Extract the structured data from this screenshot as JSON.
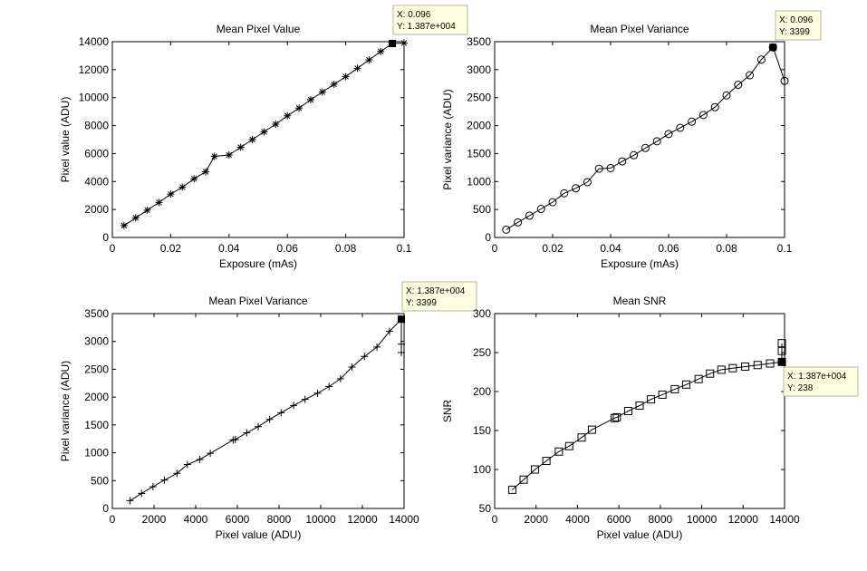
{
  "chart_data": [
    {
      "type": "line",
      "title": "Mean Pixel Value",
      "xlabel": "Exposure (mAs)",
      "ylabel": "Pixel value (ADU)",
      "xlim": [
        0,
        0.1
      ],
      "ylim": [
        0,
        14000
      ],
      "xticks": [
        "0",
        "0.02",
        "0.04",
        "0.06",
        "0.08",
        "0.1"
      ],
      "yticks": [
        "0",
        "2000",
        "4000",
        "6000",
        "8000",
        "10000",
        "12000",
        "14000"
      ],
      "marker": "asterisk",
      "series": [
        {
          "x": [
            0.004,
            0.008,
            0.012,
            0.016,
            0.02,
            0.024,
            0.028,
            0.032,
            0.035,
            0.04,
            0.044,
            0.048,
            0.052,
            0.056,
            0.06,
            0.064,
            0.068,
            0.072,
            0.076,
            0.08,
            0.084,
            0.088,
            0.092,
            0.096,
            0.1
          ],
          "y": [
            850,
            1400,
            1950,
            2500,
            3100,
            3600,
            4200,
            4700,
            5800,
            5900,
            6450,
            7000,
            7550,
            8100,
            8700,
            9250,
            9850,
            10400,
            10950,
            11500,
            12100,
            12700,
            13300,
            13870,
            13900
          ]
        }
      ],
      "datatip": {
        "x": 0.096,
        "y": 13870,
        "lines": [
          "X: 0.096",
          "Y: 1.387e+004"
        ]
      }
    },
    {
      "type": "line",
      "title": "Mean Pixel Variance",
      "xlabel": "Exposure (mAs)",
      "ylabel": "Pixel variance (ADU)",
      "xlim": [
        0,
        0.1
      ],
      "ylim": [
        0,
        3500
      ],
      "xticks": [
        "0",
        "0.02",
        "0.04",
        "0.06",
        "0.08",
        "0.1"
      ],
      "yticks": [
        "0",
        "500",
        "1000",
        "1500",
        "2000",
        "2500",
        "3000",
        "3500"
      ],
      "marker": "circle",
      "series": [
        {
          "x": [
            0.004,
            0.008,
            0.012,
            0.016,
            0.02,
            0.024,
            0.028,
            0.032,
            0.036,
            0.04,
            0.044,
            0.048,
            0.052,
            0.056,
            0.06,
            0.064,
            0.068,
            0.072,
            0.076,
            0.08,
            0.084,
            0.088,
            0.092,
            0.096,
            0.1
          ],
          "y": [
            140,
            270,
            390,
            510,
            630,
            790,
            880,
            990,
            1230,
            1240,
            1360,
            1470,
            1600,
            1720,
            1850,
            1960,
            2070,
            2190,
            2330,
            2540,
            2730,
            2900,
            3180,
            3399,
            2800
          ]
        }
      ],
      "datatip": {
        "x": 0.096,
        "y": 3399,
        "lines": [
          "X: 0.096",
          "Y: 3399"
        ]
      }
    },
    {
      "type": "line",
      "title": "Mean Pixel Variance",
      "xlabel": "Pixel value (ADU)",
      "ylabel": "Pixel variance (ADU)",
      "xlim": [
        0,
        14000
      ],
      "ylim": [
        0,
        3500
      ],
      "xticks": [
        "0",
        "2000",
        "4000",
        "6000",
        "8000",
        "10000",
        "12000",
        "14000"
      ],
      "yticks": [
        "0",
        "500",
        "1000",
        "1500",
        "2000",
        "2500",
        "3000",
        "3500"
      ],
      "marker": "plus",
      "series": [
        {
          "x": [
            850,
            1400,
            1950,
            2500,
            3100,
            3600,
            4200,
            4700,
            5800,
            5900,
            6450,
            7000,
            7550,
            8100,
            8700,
            9250,
            9850,
            10400,
            10950,
            11500,
            12100,
            12700,
            13300,
            13870,
            13870,
            13870
          ],
          "y": [
            140,
            270,
            390,
            510,
            630,
            790,
            880,
            990,
            1230,
            1240,
            1360,
            1470,
            1600,
            1720,
            1850,
            1960,
            2070,
            2190,
            2330,
            2540,
            2730,
            2900,
            3180,
            3399,
            2950,
            2800
          ]
        }
      ],
      "datatip": {
        "x": 13870,
        "y": 3399,
        "lines": [
          "X: 1.387e+004",
          "Y: 3399"
        ]
      }
    },
    {
      "type": "line",
      "title": "Mean SNR",
      "xlabel": "Pixel value (ADU)",
      "ylabel": "SNR",
      "xlim": [
        0,
        14000
      ],
      "ylim": [
        50,
        300
      ],
      "xticks": [
        "0",
        "2000",
        "4000",
        "6000",
        "8000",
        "10000",
        "12000",
        "14000"
      ],
      "yticks": [
        "50",
        "100",
        "150",
        "200",
        "250",
        "300"
      ],
      "marker": "square",
      "series": [
        {
          "x": [
            850,
            1400,
            1950,
            2500,
            3100,
            3600,
            4200,
            4700,
            5800,
            5900,
            6450,
            7000,
            7550,
            8100,
            8700,
            9250,
            9850,
            10400,
            10950,
            11500,
            12100,
            12700,
            13300,
            13870,
            13870,
            13870
          ],
          "y": [
            74,
            87,
            100,
            111,
            123,
            130,
            141,
            151,
            166,
            167,
            175,
            182,
            190,
            196,
            203,
            209,
            216,
            223,
            228,
            230,
            232,
            234,
            236,
            238,
            252,
            262
          ]
        }
      ],
      "datatip": {
        "x": 13870,
        "y": 238,
        "lines": [
          "X: 1.387e+004",
          "Y: 238"
        ]
      }
    }
  ]
}
